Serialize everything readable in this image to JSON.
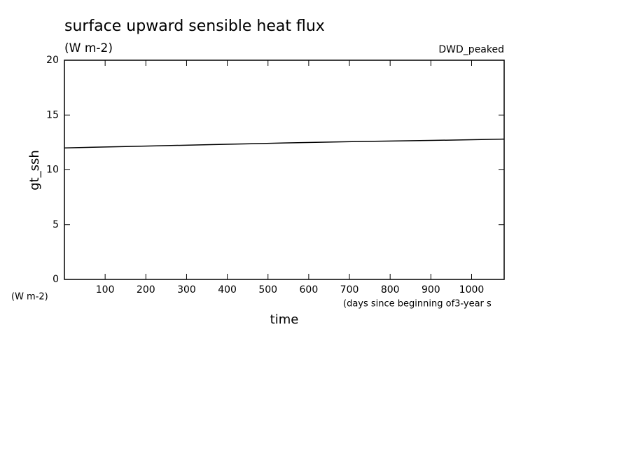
{
  "chart_data": {
    "type": "line",
    "title": "surface upward sensible heat flux",
    "subtitle": "(W m-2)",
    "annotation": "DWD_peaked",
    "y_label": "gt_ssh",
    "y_unit_label": "(W m-2)",
    "x_label": "time",
    "x_unit_label": "(days since beginning of3-year s",
    "x": [
      0,
      180,
      360,
      540,
      720,
      900,
      1080
    ],
    "series": [
      {
        "name": "gt_ssh",
        "color": "#000000",
        "values": [
          12.0,
          12.15,
          12.3,
          12.45,
          12.58,
          12.68,
          12.8
        ]
      }
    ],
    "xlim": [
      0,
      1080
    ],
    "xticks": [
      100,
      200,
      300,
      400,
      500,
      600,
      700,
      800,
      900,
      1000
    ],
    "ylim": [
      0,
      20
    ],
    "yticks": [
      0,
      5,
      10,
      15,
      20
    ],
    "grid": false
  }
}
